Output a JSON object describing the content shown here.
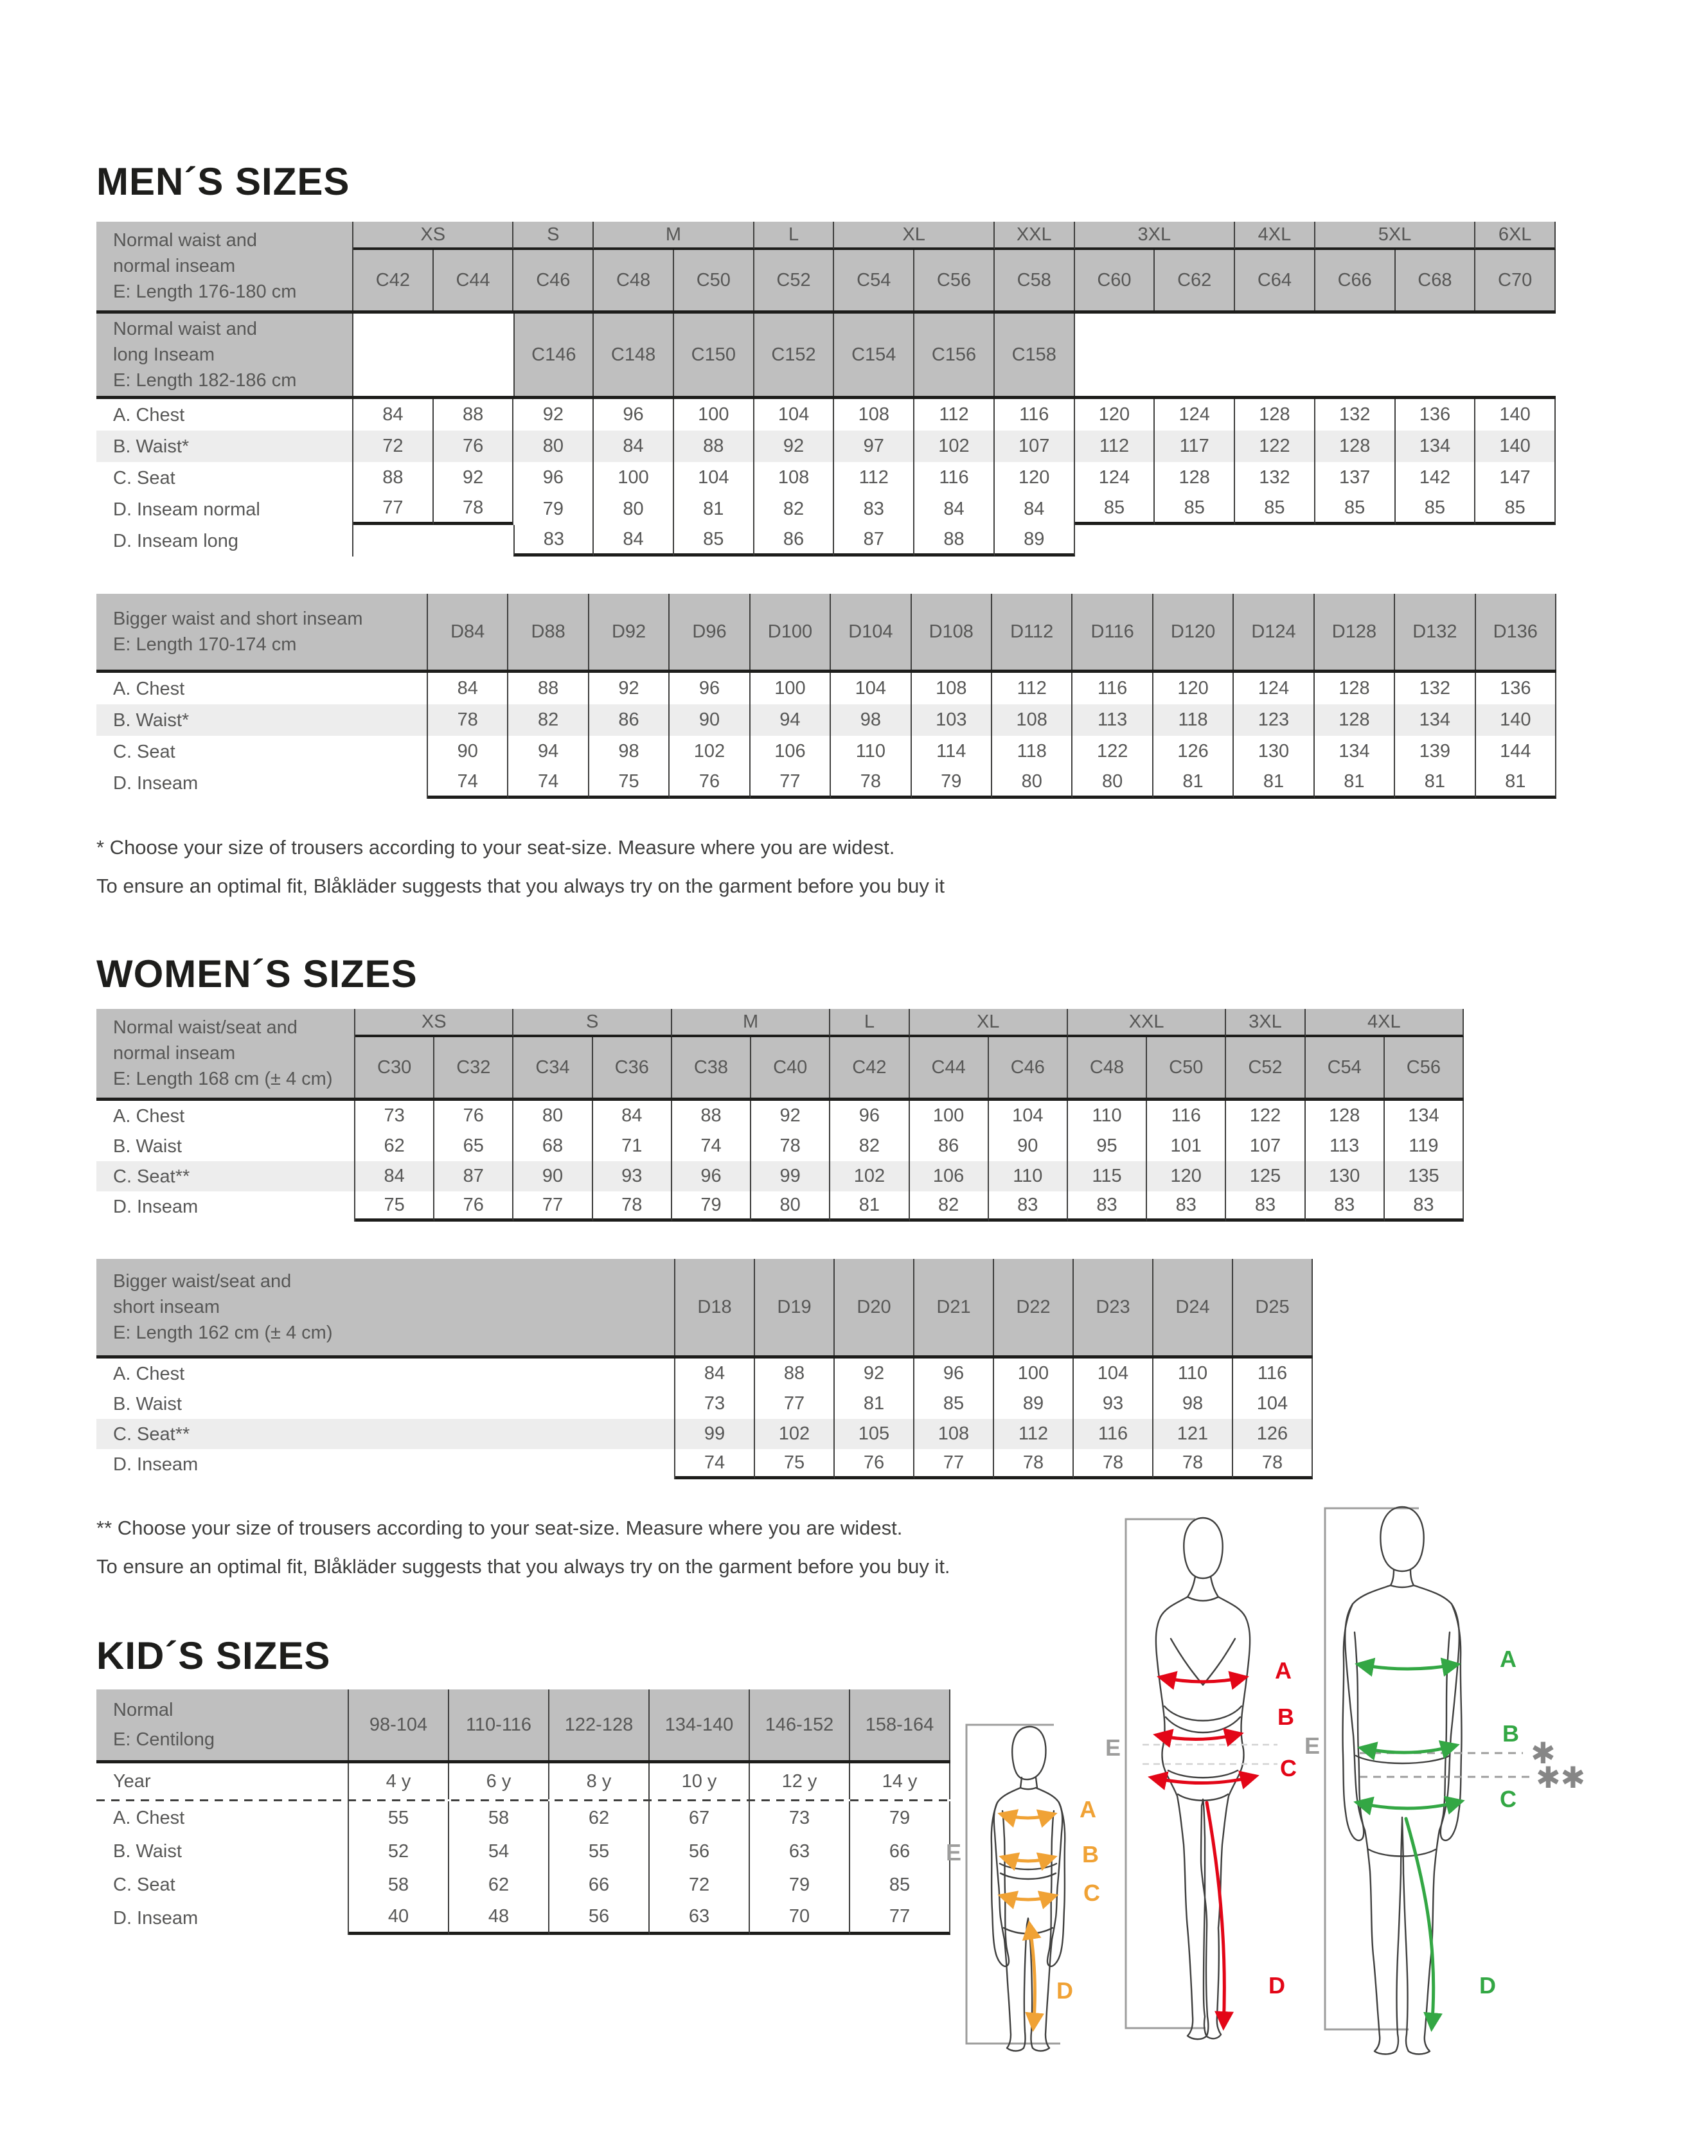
{
  "men": {
    "heading": "MEN´S SIZES",
    "normal": {
      "label": "Normal waist and\nnormal inseam\nE: Length 176-180 cm",
      "groups": [
        [
          "XS",
          2
        ],
        [
          "S",
          1
        ],
        [
          "M",
          2
        ],
        [
          "L",
          1
        ],
        [
          "XL",
          2
        ],
        [
          "XXL",
          1
        ],
        [
          "3XL",
          2
        ],
        [
          "4XL",
          1
        ],
        [
          "5XL",
          2
        ],
        [
          "6XL",
          1
        ]
      ],
      "sizes": [
        "C42",
        "C44",
        "C46",
        "C48",
        "C50",
        "C52",
        "C54",
        "C56",
        "C58",
        "C60",
        "C62",
        "C64",
        "C66",
        "C68",
        "C70"
      ],
      "long_label": "Normal waist and\nlong Inseam\nE: Length 182-186 cm",
      "long_start": 2,
      "long_sizes": [
        "C146",
        "C148",
        "C150",
        "C152",
        "C154",
        "C156",
        "C158"
      ],
      "rows": [
        {
          "label": "A. Chest",
          "v": [
            84,
            88,
            92,
            96,
            100,
            104,
            108,
            112,
            116,
            120,
            124,
            128,
            132,
            136,
            140
          ]
        },
        {
          "label": "B. Waist*",
          "v": [
            72,
            76,
            80,
            84,
            88,
            92,
            97,
            102,
            107,
            112,
            117,
            122,
            128,
            134,
            140
          ],
          "shaded": true
        },
        {
          "label": "C. Seat",
          "v": [
            88,
            92,
            96,
            100,
            104,
            108,
            112,
            116,
            120,
            124,
            128,
            132,
            137,
            142,
            147
          ]
        },
        {
          "label": "D. Inseam normal",
          "v": [
            77,
            78,
            79,
            80,
            81,
            82,
            83,
            84,
            84,
            85,
            85,
            85,
            85,
            85,
            85
          ]
        },
        {
          "label": "D. Inseam long",
          "v": [
            83,
            84,
            85,
            86,
            87,
            88,
            89
          ],
          "start": 2
        }
      ]
    },
    "bigger": {
      "label": "Bigger waist and short inseam\nE: Length 170-174 cm",
      "sizes": [
        "D84",
        "D88",
        "D92",
        "D96",
        "D100",
        "D104",
        "D108",
        "D112",
        "D116",
        "D120",
        "D124",
        "D128",
        "D132",
        "D136"
      ],
      "rows": [
        {
          "label": "A. Chest",
          "v": [
            84,
            88,
            92,
            96,
            100,
            104,
            108,
            112,
            116,
            120,
            124,
            128,
            132,
            136
          ]
        },
        {
          "label": "B. Waist*",
          "v": [
            78,
            82,
            86,
            90,
            94,
            98,
            103,
            108,
            113,
            118,
            123,
            128,
            134,
            140
          ],
          "shaded": true
        },
        {
          "label": "C. Seat",
          "v": [
            90,
            94,
            98,
            102,
            106,
            110,
            114,
            118,
            122,
            126,
            130,
            134,
            139,
            144
          ]
        },
        {
          "label": "D. Inseam",
          "v": [
            74,
            74,
            75,
            76,
            77,
            78,
            79,
            80,
            80,
            81,
            81,
            81,
            81,
            81
          ]
        }
      ]
    },
    "footnote": [
      "* Choose your size of trousers according to your seat-size. Measure where you are widest.",
      "To ensure an optimal fit, Blåkläder suggests that you always try on the garment before you buy it"
    ]
  },
  "women": {
    "heading": "WOMEN´S SIZES",
    "normal": {
      "label": "Normal waist/seat and\nnormal inseam\nE: Length 168 cm (± 4 cm)",
      "groups": [
        [
          "XS",
          2
        ],
        [
          "S",
          2
        ],
        [
          "M",
          2
        ],
        [
          "L",
          1
        ],
        [
          "XL",
          2
        ],
        [
          "XXL",
          2
        ],
        [
          "3XL",
          1
        ],
        [
          "4XL",
          2
        ]
      ],
      "sizes": [
        "C30",
        "C32",
        "C34",
        "C36",
        "C38",
        "C40",
        "C42",
        "C44",
        "C46",
        "C48",
        "C50",
        "C52",
        "C54",
        "C56"
      ],
      "rows": [
        {
          "label": "A. Chest",
          "v": [
            73,
            76,
            80,
            84,
            88,
            92,
            96,
            100,
            104,
            110,
            116,
            122,
            128,
            134
          ]
        },
        {
          "label": "B. Waist",
          "v": [
            62,
            65,
            68,
            71,
            74,
            78,
            82,
            86,
            90,
            95,
            101,
            107,
            113,
            119
          ]
        },
        {
          "label": "C. Seat**",
          "v": [
            84,
            87,
            90,
            93,
            96,
            99,
            102,
            106,
            110,
            115,
            120,
            125,
            130,
            135
          ],
          "shaded": true
        },
        {
          "label": "D. Inseam",
          "v": [
            75,
            76,
            77,
            78,
            79,
            80,
            81,
            82,
            83,
            83,
            83,
            83,
            83,
            83
          ]
        }
      ]
    },
    "bigger": {
      "label": "Bigger waist/seat and\nshort inseam\nE: Length 162 cm (± 4 cm)",
      "sizes": [
        "D18",
        "D19",
        "D20",
        "D21",
        "D22",
        "D23",
        "D24",
        "D25"
      ],
      "rows": [
        {
          "label": "A. Chest",
          "v": [
            84,
            88,
            92,
            96,
            100,
            104,
            110,
            116
          ]
        },
        {
          "label": "B. Waist",
          "v": [
            73,
            77,
            81,
            85,
            89,
            93,
            98,
            104
          ]
        },
        {
          "label": "C. Seat**",
          "v": [
            99,
            102,
            105,
            108,
            112,
            116,
            121,
            126
          ],
          "shaded": true
        },
        {
          "label": "D. Inseam",
          "v": [
            74,
            75,
            76,
            77,
            78,
            78,
            78,
            78
          ]
        }
      ]
    },
    "footnote": [
      "** Choose your size of trousers according to your seat-size. Measure where you are widest.",
      "To ensure an optimal fit, Blåkläder suggests that you always try on the garment before you buy it."
    ]
  },
  "kids": {
    "heading": "KID´S SIZES",
    "table": {
      "label": "Normal\nE: Centilong",
      "sizes": [
        "98-104",
        "110-116",
        "122-128",
        "134-140",
        "146-152",
        "158-164"
      ],
      "year": {
        "label": "Year",
        "v": [
          "4 y",
          "6 y",
          "8 y",
          "10 y",
          "12 y",
          "14 y"
        ]
      },
      "rows": [
        {
          "label": "A. Chest",
          "v": [
            55,
            58,
            62,
            67,
            73,
            79
          ]
        },
        {
          "label": "B. Waist",
          "v": [
            52,
            54,
            55,
            56,
            63,
            66
          ]
        },
        {
          "label": "C. Seat",
          "v": [
            58,
            62,
            66,
            72,
            79,
            85
          ]
        },
        {
          "label": "D. Inseam",
          "v": [
            40,
            48,
            56,
            63,
            70,
            77
          ]
        }
      ]
    }
  },
  "figures": {
    "child": {
      "color": "#F0A235",
      "labels": {
        "a": "A",
        "b": "B",
        "c": "C",
        "d": "D",
        "e": "E"
      }
    },
    "woman": {
      "color": "#E30617",
      "labels": {
        "a": "A",
        "b": "B",
        "c": "C",
        "d": "D",
        "e": "E"
      }
    },
    "man": {
      "color": "#33A744",
      "labels": {
        "a": "A",
        "b": "B",
        "c": "C",
        "d": "D",
        "e": "E"
      }
    },
    "marker_one": "✱",
    "marker_two": "✱✱"
  }
}
